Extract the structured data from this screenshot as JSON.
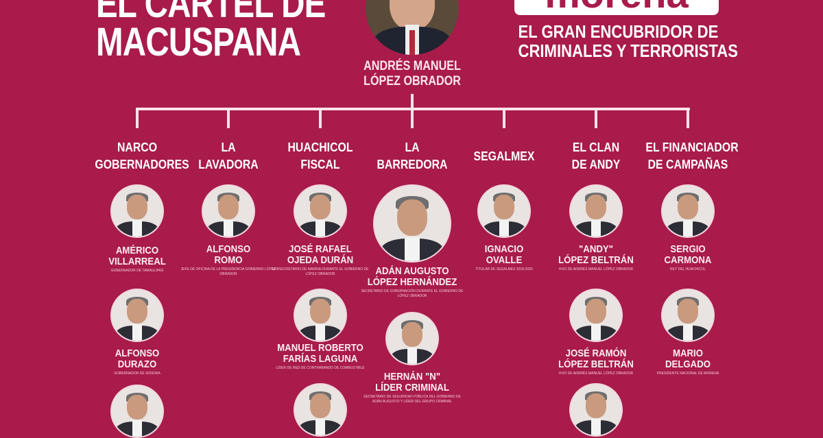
{
  "header": {
    "title_line1": "EL CÁRTEL DE",
    "title_line2": "MACUSPANA",
    "logo_text": "morena",
    "slogan_line1": "EL GRAN ENCUBRIDOR DE",
    "slogan_line2": "CRIMINALES Y TERRORISTAS"
  },
  "leader": {
    "name_line1": "ANDRÉS MANUEL",
    "name_line2": "LÓPEZ OBRADOR"
  },
  "colors": {
    "background": "#a81b4a",
    "text": "#ffffff"
  },
  "columns": [
    {
      "category": [
        "NARCO",
        "GOBERNADORES"
      ],
      "people": [
        {
          "name": [
            "AMÉRICO",
            "VILLARREAL"
          ],
          "role": "Gobernador de Tamaulipas"
        },
        {
          "name": [
            "ALFONSO",
            "DURAZO"
          ],
          "role": "Gobernador de Sonora"
        },
        {
          "name": [],
          "role": ""
        }
      ]
    },
    {
      "category": [
        "LA",
        "LAVADORA"
      ],
      "people": [
        {
          "name": [
            "ALFONSO",
            "ROMO"
          ],
          "role": "Jefe de Oficina de la Presidencia Gobierno López Obrador"
        }
      ]
    },
    {
      "category": [
        "HUACHICOL",
        "FISCAL"
      ],
      "people": [
        {
          "name": [
            "JOSÉ RAFAEL",
            "OJEDA DURÁN"
          ],
          "role": "Subsecretario de Marina durante el Gobierno de López Obrador"
        },
        {
          "name": [
            "MANUEL ROBERTO",
            "FARÍAS LAGUNA"
          ],
          "role": "Líder de red de contrabando de combustible"
        },
        {
          "name": [],
          "role": ""
        }
      ]
    },
    {
      "category": [
        "LA",
        "BARREDORA"
      ],
      "people": [
        {
          "name": [
            "ADÁN AUGUSTO",
            "LÓPEZ HERNÁNDEZ"
          ],
          "role": "Secretario de Gobernación durante el Gobierno de López Obrador"
        },
        {
          "name": [
            "HERNÁN \"N\"",
            "LÍDER CRIMINAL"
          ],
          "role": "Secretario de Seguridad Pública del Gobierno de Adán Augusto y Líder del Grupo Criminal"
        }
      ]
    },
    {
      "category": [
        "SEGALMEX"
      ],
      "people": [
        {
          "name": [
            "IGNACIO",
            "OVALLE"
          ],
          "role": "Titular de Segalmex 2018-2020"
        }
      ]
    },
    {
      "category": [
        "EL CLAN",
        "DE ANDY"
      ],
      "people": [
        {
          "name": [
            "\"ANDY\"",
            "LÓPEZ BELTRÁN"
          ],
          "role": "Hijo de Andrés Manuel López Obrador"
        },
        {
          "name": [
            "JOSÉ RAMÓN",
            "LÓPEZ BELTRÁN"
          ],
          "role": "Hijo de Andrés Manuel López Obrador"
        },
        {
          "name": [],
          "role": ""
        }
      ]
    },
    {
      "category": [
        "EL FINANCIADOR",
        "DE CAMPAÑAS"
      ],
      "people": [
        {
          "name": [
            "SERGIO",
            "CARMONA"
          ],
          "role": "Rey del Huachicol"
        },
        {
          "name": [
            "MARIO",
            "DELGADO"
          ],
          "role": "Presidente Nacional de Morena"
        }
      ]
    }
  ]
}
